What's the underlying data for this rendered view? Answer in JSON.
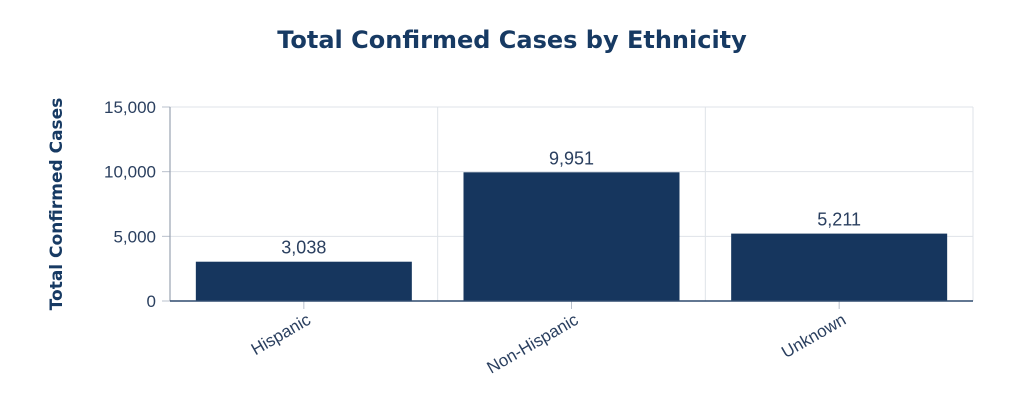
{
  "chart_data": {
    "type": "bar",
    "title": "Total Confirmed Cases by Ethnicity",
    "xlabel": "",
    "ylabel": "Total Confirmed Cases",
    "categories": [
      "Hispanic",
      "Non-Hispanic",
      "Unknown"
    ],
    "values": [
      3038,
      9951,
      5211
    ],
    "value_labels": [
      "3,038",
      "9,951",
      "5,211"
    ],
    "ylim": [
      0,
      15000
    ],
    "yticks": [
      0,
      5000,
      10000,
      15000
    ],
    "ytick_labels": [
      "0",
      "5,000",
      "10,000",
      "15,000"
    ],
    "grid": true,
    "legend": "none",
    "bar_color": "#16365e"
  }
}
